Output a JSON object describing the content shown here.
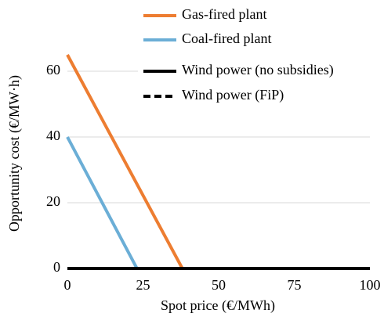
{
  "chart_data": {
    "type": "line",
    "x_label": "Spot price (€/MWh)",
    "y_label": "Opportunity cost (€/MW·h)",
    "xlim": [
      0,
      100
    ],
    "xticks": [
      0,
      25,
      50,
      75,
      100
    ],
    "ylim": [
      0,
      70
    ],
    "yticks": [
      0,
      20,
      40,
      60
    ],
    "grid": true,
    "legend": "top-right",
    "series": [
      {
        "name": "Gas-fired plant",
        "color": "#ed7d31",
        "dash": "solid",
        "x": [
          0,
          38,
          100
        ],
        "values": [
          65,
          0,
          0
        ]
      },
      {
        "name": "Coal-fired plant",
        "color": "#6baed6",
        "dash": "solid",
        "x": [
          0,
          23,
          100
        ],
        "values": [
          40,
          0,
          0
        ]
      },
      {
        "name": "Wind power (no subsidies)",
        "color": "#000000",
        "dash": "solid",
        "x": [
          0,
          100
        ],
        "values": [
          0,
          0
        ]
      },
      {
        "name": "Wind power (FiP)",
        "color": "#000000",
        "dash": "dashed",
        "x": [
          0,
          100
        ],
        "values": [
          0,
          0
        ]
      }
    ]
  }
}
